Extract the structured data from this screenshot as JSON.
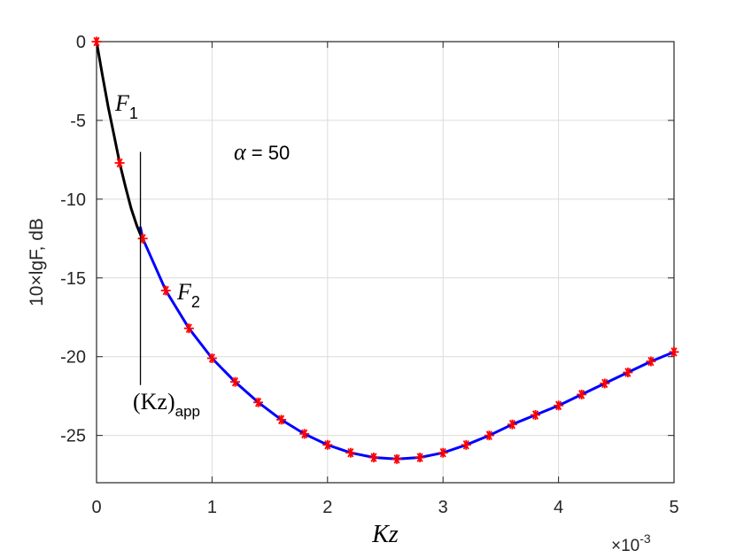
{
  "chart_data": {
    "type": "line",
    "xlabel": "Kz",
    "x_exponent": "×10",
    "x_exponent_power": "-3",
    "ylabel": "10×lgF, dB",
    "xlim": [
      0,
      5
    ],
    "ylim": [
      -28,
      0
    ],
    "x_ticks": [
      "0",
      "1",
      "2",
      "3",
      "4",
      "5"
    ],
    "y_ticks": [
      "0",
      "-5",
      "-10",
      "-15",
      "-20",
      "-25"
    ],
    "x_tick_values": [
      0,
      1,
      2,
      3,
      4,
      5
    ],
    "y_tick_values": [
      0,
      -5,
      -10,
      -15,
      -20,
      -25
    ],
    "grid": true,
    "series": [
      {
        "name": "F1",
        "color": "#000000",
        "x": [
          0,
          0.05,
          0.1,
          0.15,
          0.2,
          0.25,
          0.3,
          0.35,
          0.4
        ],
        "values": [
          0,
          -2.1,
          -4.1,
          -5.9,
          -7.7,
          -9.2,
          -10.6,
          -11.7,
          -12.6
        ]
      },
      {
        "name": "F2",
        "color": "#0000ff",
        "x": [
          0.38,
          0.4,
          0.6,
          0.8,
          1.0,
          1.2,
          1.4,
          1.6,
          1.8,
          2.0,
          2.2,
          2.4,
          2.6,
          2.8,
          3.0,
          3.2,
          3.4,
          3.6,
          3.8,
          4.0,
          4.2,
          4.4,
          4.6,
          4.8,
          5.0
        ],
        "values": [
          -11.8,
          -12.5,
          -15.8,
          -18.2,
          -20.1,
          -21.6,
          -22.9,
          -24.0,
          -24.9,
          -25.6,
          -26.1,
          -26.4,
          -26.5,
          -26.4,
          -26.1,
          -25.6,
          -25.0,
          -24.3,
          -23.7,
          -23.1,
          -22.4,
          -21.7,
          -21.0,
          -20.3,
          -19.7
        ]
      },
      {
        "name": "markers",
        "color": "#ff0000",
        "x": [
          0,
          0.2,
          0.4,
          0.6,
          0.8,
          1.0,
          1.2,
          1.4,
          1.6,
          1.8,
          2.0,
          2.2,
          2.4,
          2.6,
          2.8,
          3.0,
          3.2,
          3.4,
          3.6,
          3.8,
          4.0,
          4.2,
          4.4,
          4.6,
          4.8,
          5.0
        ],
        "values": [
          0,
          -7.7,
          -12.5,
          -15.8,
          -18.2,
          -20.1,
          -21.6,
          -22.9,
          -24.0,
          -24.9,
          -25.6,
          -26.1,
          -26.4,
          -26.5,
          -26.4,
          -26.1,
          -25.6,
          -25.0,
          -24.3,
          -23.7,
          -23.1,
          -22.4,
          -21.7,
          -21.0,
          -20.3,
          -19.7
        ]
      }
    ],
    "annotations": {
      "f1_main": "F",
      "f1_sub": "1",
      "f2_main": "F",
      "f2_sub": "2",
      "alpha_symbol": "α",
      "alpha_value": " = 50",
      "kzapp_main": "(Kz)",
      "kzapp_sub": "app",
      "kzapp_x": 0.38,
      "kzapp_y_top": -7,
      "kzapp_y_bottom": -21.8
    }
  }
}
